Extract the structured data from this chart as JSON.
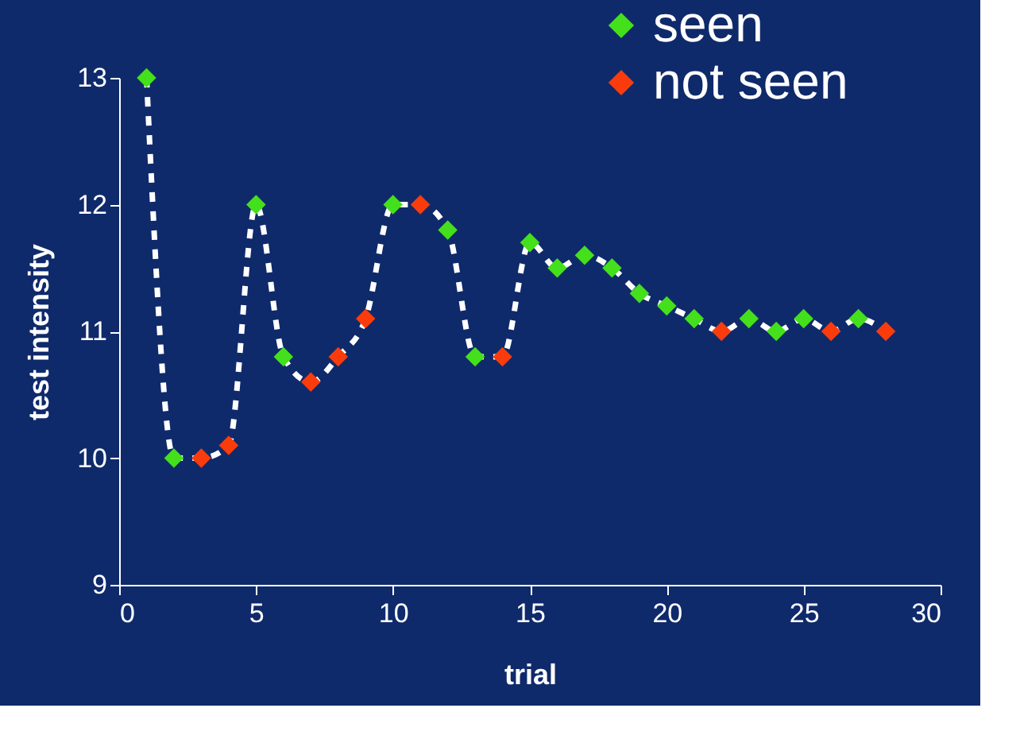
{
  "chart_data": {
    "type": "scatter",
    "xlabel": "trial",
    "ylabel": "test intensity",
    "xlim": [
      0,
      30
    ],
    "xticks": [
      0,
      5,
      10,
      15,
      20,
      25,
      30
    ],
    "ylim": [
      9,
      13
    ],
    "yticks": [
      9,
      10,
      11,
      12,
      13
    ],
    "grid": false,
    "legend": "top right",
    "marker": "diamond",
    "series": [
      {
        "type": "line",
        "color": "#ffffff",
        "line_style": "dashed",
        "marker": "none",
        "x": [
          1,
          2,
          3,
          4,
          5,
          6,
          7,
          8,
          9,
          10,
          11,
          12,
          13,
          14,
          15,
          16,
          17,
          18,
          19,
          20,
          21,
          22,
          23,
          24,
          25,
          26,
          27,
          28
        ],
        "values": [
          13,
          10,
          10,
          10.1,
          12,
          10.8,
          10.6,
          10.8,
          11.1,
          12,
          12,
          11.8,
          10.8,
          10.8,
          11.7,
          11.5,
          11.6,
          11.5,
          11.3,
          11.2,
          11.1,
          11,
          11.1,
          11,
          11.1,
          11,
          11.1,
          11
        ]
      },
      {
        "name": "seen",
        "color": "#44e01c",
        "x": [
          1,
          2,
          5,
          6,
          10,
          12,
          13,
          15,
          16,
          17,
          18,
          19,
          20,
          21,
          23,
          24,
          25,
          27
        ],
        "values": [
          13,
          10,
          12,
          10.8,
          12,
          11.8,
          10.8,
          11.7,
          11.5,
          11.6,
          11.5,
          11.3,
          11.2,
          11.1,
          11.1,
          11,
          11.1,
          11.1
        ]
      },
      {
        "name": "not seen",
        "color": "#fa3c0c",
        "x": [
          3,
          4,
          7,
          8,
          9,
          11,
          14,
          22,
          26,
          28
        ],
        "values": [
          10,
          10.1,
          10.6,
          10.8,
          11.1,
          12,
          10.8,
          11,
          11,
          11
        ]
      }
    ]
  }
}
